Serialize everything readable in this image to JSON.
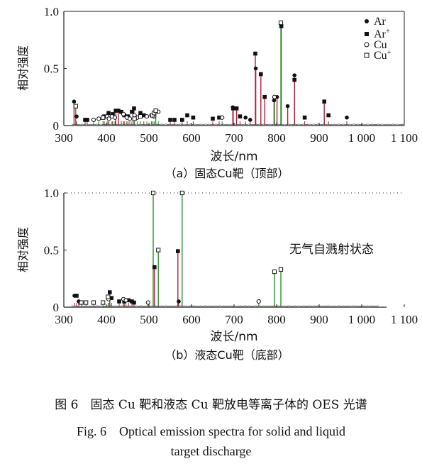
{
  "caption": {
    "zh": "图 6　固态 Cu 靶和液态 Cu 靶放电等离子体的 OES 光谱",
    "en_line1": "Fig. 6　Optical emission spectra for solid and liquid",
    "en_line2": "target discharge"
  },
  "colors": {
    "ar_line": "#b3213a",
    "cu_line": "#2f8f2f",
    "axis": "#222222"
  },
  "chart_data": [
    {
      "type": "line",
      "subtitle": "（a）固态Cu靶（顶部）",
      "xlabel": "波长/nm",
      "ylabel": "相对强度",
      "xlim": [
        300,
        1100
      ],
      "ylim": [
        0,
        1.0
      ],
      "xticks": [
        300,
        400,
        500,
        600,
        700,
        800,
        900,
        1000,
        1100
      ],
      "xtick_labels": [
        "300",
        "400",
        "500",
        "600",
        "700",
        "800",
        "900",
        "1 000",
        "1 100"
      ],
      "yticks": [
        0,
        0.5,
        1.0
      ],
      "ytick_labels": [
        "0",
        "0.5",
        "1.0"
      ],
      "legend": {
        "position": "top-right",
        "entries": [
          {
            "label": "Ar",
            "marker": "filled-circle"
          },
          {
            "label": "Ar",
            "sup": "+",
            "marker": "filled-square"
          },
          {
            "label": "Cu",
            "marker": "open-circle"
          },
          {
            "label": "Cu",
            "sup": "+",
            "marker": "open-square"
          }
        ]
      },
      "series": [
        {
          "name": "Ar",
          "marker": "filled-circle",
          "color": "#b3213a",
          "points": [
            [
              324,
              0.21
            ],
            [
              330,
              0.08
            ],
            [
              697,
              0.16
            ],
            [
              727,
              0.07
            ],
            [
              738,
              0.05
            ],
            [
              751,
              0.5
            ],
            [
              794,
              0.22
            ],
            [
              801,
              0.25
            ],
            [
              826,
              0.17
            ],
            [
              842,
              0.44
            ],
            [
              965,
              0.07
            ]
          ]
        },
        {
          "name": "Ar+",
          "marker": "filled-square",
          "color": "#b3213a",
          "points": [
            [
              350,
              0.05
            ],
            [
              355,
              0.05
            ],
            [
              395,
              0.08
            ],
            [
              405,
              0.11
            ],
            [
              415,
              0.1
            ],
            [
              422,
              0.13
            ],
            [
              428,
              0.13
            ],
            [
              435,
              0.12
            ],
            [
              442,
              0.09
            ],
            [
              451,
              0.08
            ],
            [
              460,
              0.12
            ],
            [
              465,
              0.15
            ],
            [
              480,
              0.11
            ],
            [
              488,
              0.09
            ],
            [
              550,
              0.05
            ],
            [
              560,
              0.05
            ],
            [
              578,
              0.05
            ],
            [
              590,
              0.09
            ],
            [
              604,
              0.07
            ],
            [
              650,
              0.06
            ],
            [
              665,
              0.07
            ],
            [
              698,
              0.15
            ],
            [
              706,
              0.15
            ],
            [
              714,
              0.08
            ],
            [
              750,
              0.63
            ],
            [
              763,
              0.45
            ],
            [
              772,
              0.25
            ],
            [
              811,
              0.87
            ],
            [
              842,
              0.4
            ],
            [
              866,
              0.07
            ],
            [
              912,
              0.21
            ],
            [
              922,
              0.09
            ]
          ]
        },
        {
          "name": "Cu",
          "marker": "open-circle",
          "color": "#2f8f2f",
          "points": [
            [
              370,
              0.05
            ],
            [
              382,
              0.06
            ],
            [
              402,
              0.08
            ],
            [
              406,
              0.06
            ],
            [
              413,
              0.08
            ],
            [
              420,
              0.07
            ],
            [
              440,
              0.1
            ],
            [
              448,
              0.07
            ],
            [
              455,
              0.06
            ],
            [
              466,
              0.09
            ],
            [
              473,
              0.07
            ],
            [
              495,
              0.08
            ],
            [
              506,
              0.09
            ],
            [
              512,
              0.08
            ],
            [
              522,
              0.12
            ],
            [
              672,
              0.07
            ],
            [
              795,
              0.25
            ]
          ]
        },
        {
          "name": "Cu+",
          "marker": "open-square",
          "color": "#2f8f2f",
          "points": [
            [
              328,
              0.17
            ],
            [
              392,
              0.07
            ],
            [
              466,
              0.06
            ],
            [
              480,
              0.08
            ],
            [
              508,
              0.09
            ],
            [
              512,
              0.11
            ],
            [
              516,
              0.13
            ],
            [
              810,
              0.9
            ]
          ]
        }
      ]
    },
    {
      "type": "line",
      "subtitle": "（b）液态Cu靶（底部）",
      "xlabel": "波长/nm",
      "ylabel": "相对强度",
      "annotation": "无气自溅射状态",
      "xlim": [
        300,
        1100
      ],
      "ylim": [
        0,
        1.0
      ],
      "xticks": [
        300,
        400,
        500,
        600,
        700,
        800,
        900,
        1000,
        1100
      ],
      "xtick_labels": [
        "300",
        "400",
        "500",
        "600",
        "700",
        "800",
        "900",
        "1 000",
        "1 100"
      ],
      "yticks": [
        0,
        0.5,
        1.0
      ],
      "ytick_labels": [
        "0",
        "0.5",
        "1.0"
      ],
      "series": [
        {
          "name": "Ar",
          "marker": "filled-circle",
          "color": "#b3213a",
          "points": [
            [
              325,
              0.1
            ],
            [
              335,
              0.05
            ],
            [
              570,
              0.05
            ]
          ]
        },
        {
          "name": "Ar+",
          "marker": "filled-square",
          "color": "#b3213a",
          "points": [
            [
              330,
              0.1
            ],
            [
              408,
              0.13
            ],
            [
              412,
              0.08
            ],
            [
              430,
              0.05
            ],
            [
              442,
              0.05
            ],
            [
              452,
              0.06
            ],
            [
              460,
              0.05
            ],
            [
              465,
              0.04
            ],
            [
              513,
              0.35
            ],
            [
              568,
              0.49
            ]
          ]
        },
        {
          "name": "Cu",
          "marker": "open-circle",
          "color": "#2f8f2f",
          "points": [
            [
              405,
              0.07
            ],
            [
              440,
              0.07
            ],
            [
              446,
              0.06
            ],
            [
              498,
              0.04
            ],
            [
              758,
              0.05
            ]
          ]
        },
        {
          "name": "Cu+",
          "marker": "open-square",
          "color": "#2f8f2f",
          "points": [
            [
              341,
              0.04
            ],
            [
              352,
              0.04
            ],
            [
              370,
              0.04
            ],
            [
              392,
              0.04
            ],
            [
              404,
              0.09
            ],
            [
              510,
              1.0
            ],
            [
              522,
              0.5
            ],
            [
              578,
              1.0
            ],
            [
              795,
              0.31
            ],
            [
              810,
              0.33
            ]
          ]
        }
      ]
    }
  ]
}
